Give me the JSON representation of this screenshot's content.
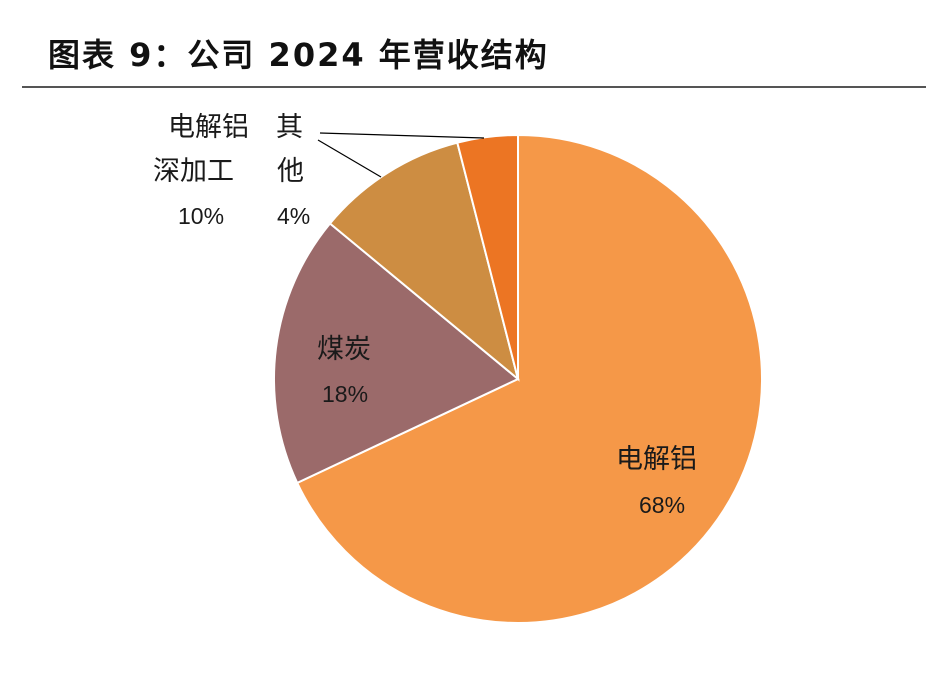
{
  "title": "图表 9：公司 2024 年营收结构",
  "chart_data": {
    "type": "pie",
    "title": "图表 9：公司 2024 年营收结构",
    "slices": [
      {
        "label": "电解铝",
        "pct_label": "68%",
        "value": 68,
        "color": "#F59848"
      },
      {
        "label": "煤炭",
        "pct_label": "18%",
        "value": 18,
        "color": "#9B6A6A"
      },
      {
        "label": "深加工",
        "pct_label": "10%",
        "value": 10,
        "color": "#CD8D42"
      },
      {
        "label": "其他",
        "pct_label": "4%",
        "value": 4,
        "color": "#EC7523"
      }
    ],
    "annotations": [
      {
        "text": "电解铝"
      },
      {
        "text": "深加工"
      },
      {
        "text": "其"
      },
      {
        "text": "他"
      }
    ],
    "legend": "none"
  }
}
